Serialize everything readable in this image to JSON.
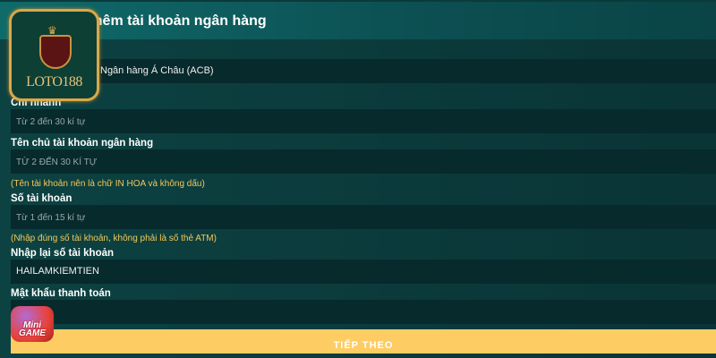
{
  "header": {
    "title": "Thêm tài khoản ngân hàng"
  },
  "form": {
    "bank_value": "Ngân hàng Á Châu (ACB)",
    "branch_label": "Chi nhánh",
    "branch_placeholder": "Từ 2 đến 30 kí tự",
    "holder_label": "Tên chủ tài khoản ngân hàng",
    "holder_placeholder": "TỪ 2 ĐẾN 30 KÍ TỰ",
    "holder_note": "(Tên tài khoản nên là chữ IN HOA và không dấu)",
    "account_label": "Số tài khoản",
    "account_placeholder": "Từ 1 đến 15 kí tự",
    "account_note": "(Nhập đúng số tài khoản, không phải là số thẻ ATM)",
    "reaccount_label": "Nhập lại số tài khoản",
    "reaccount_value": "HAILAMKIEMTIEN",
    "password_label": "Mật khẩu thanh toán",
    "password_value": "••••••",
    "submit_label": "TIẾP THEO"
  },
  "logo": {
    "text": "LOTO188"
  },
  "minigame": {
    "text": "Mini GAME"
  },
  "colors": {
    "accent": "#fdcd64",
    "note": "#f3c85a",
    "bg": "#0b3a3a"
  }
}
